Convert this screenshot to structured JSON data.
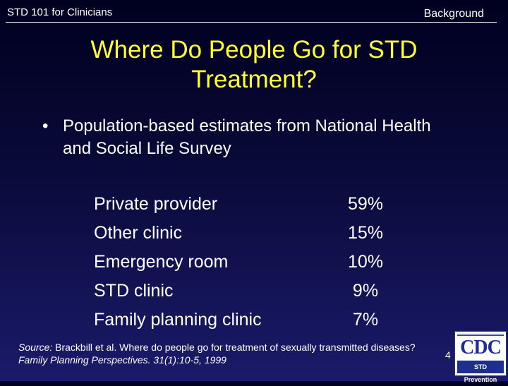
{
  "header": {
    "course_title": "STD 101 for Clinicians",
    "section": "Background"
  },
  "title": {
    "line1": "Where Do People Go for STD",
    "line2": "Treatment?"
  },
  "bullet": {
    "symbol": "•",
    "text": "Population-based estimates from National Health and Social Life Survey"
  },
  "treatment_sites": [
    {
      "label": "Private provider",
      "value": "59%"
    },
    {
      "label": "Other clinic",
      "value": "15%"
    },
    {
      "label": "Emergency room",
      "value": "10%"
    },
    {
      "label": "STD clinic",
      "value": "9%"
    },
    {
      "label": "Family planning clinic",
      "value": "7%"
    }
  ],
  "source": {
    "prefix": "Source:",
    "text": " Brackbill et al. Where do people go for treatment of sexually transmitted diseases? ",
    "journal": "Family Planning Perspectives. 31(1):10-5, 1999"
  },
  "page_number": "4",
  "logo": {
    "text": "CDC",
    "tagline": "STD Prevention"
  },
  "colors": {
    "title": "#ffff33",
    "background_top": "#000020",
    "background_bottom": "#1a1a6a",
    "logo_blue": "#1f2f8f"
  }
}
